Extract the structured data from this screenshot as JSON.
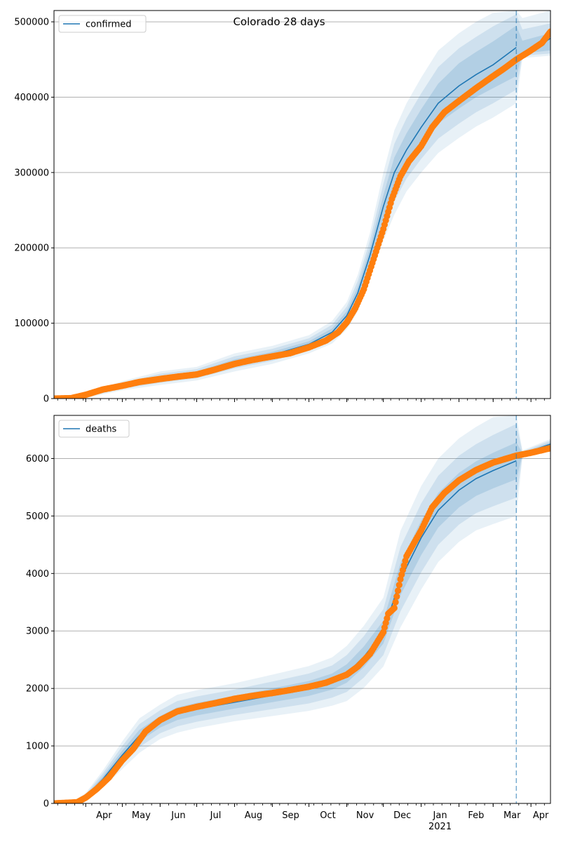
{
  "figure": {
    "title": "Colorado 28 days"
  },
  "colors": {
    "model": "#1f77b4",
    "observed": "#ff7f0e",
    "band": "#1f77b4",
    "grid": "#b0b0b0",
    "forecast_line": "#1f77b4"
  },
  "x_axis": {
    "months": [
      "Apr",
      "May",
      "Jun",
      "Jul",
      "Aug",
      "Sep",
      "Oct",
      "Nov",
      "Dec",
      "Jan",
      "Feb",
      "Mar",
      "Apr"
    ],
    "year_label": "2021",
    "year_label_under": "Jan",
    "range": [
      "2020-03-06",
      "2021-04-17"
    ],
    "forecast_start": "2021-03-20"
  },
  "chart_data": [
    {
      "type": "line",
      "legend": "confirmed",
      "legend_position": "upper left",
      "grid": "y",
      "ylim": [
        0,
        515000
      ],
      "yticks": [
        0,
        100000,
        200000,
        300000,
        400000,
        500000
      ],
      "ytick_labels": [
        "0",
        "100000",
        "200000",
        "300000",
        "400000",
        "500000"
      ],
      "series": [
        {
          "name": "confirmed",
          "kind": "model",
          "x": [
            "2020-03-06",
            "2020-04-01",
            "2020-05-01",
            "2020-06-01",
            "2020-07-01",
            "2020-08-01",
            "2020-09-01",
            "2020-10-01",
            "2020-10-20",
            "2020-11-01",
            "2020-11-10",
            "2020-11-20",
            "2020-12-01",
            "2020-12-10",
            "2020-12-20",
            "2021-01-01",
            "2021-01-15",
            "2021-02-01",
            "2021-02-15",
            "2021-03-01",
            "2021-03-20",
            "2021-03-25",
            "2021-04-17"
          ],
          "values": [
            0,
            4000,
            17000,
            27000,
            33000,
            48000,
            58000,
            72000,
            88000,
            110000,
            140000,
            190000,
            255000,
            300000,
            330000,
            360000,
            392000,
            415000,
            430000,
            443000,
            466000,
            455000,
            478000
          ],
          "bands": [
            {
              "lower": [
                0,
                3000,
                15000,
                24000,
                30000,
                44000,
                54000,
                68000,
                83000,
                104000,
                132000,
                180000,
                240000,
                280000,
                310000,
                337000,
                365000,
                385000,
                400000,
                412000,
                428000,
                458000,
                462000
              ],
              "upper": [
                0,
                5000,
                19000,
                30000,
                36000,
                52000,
                62000,
                76000,
                93000,
                116000,
                148000,
                200000,
                270000,
                320000,
                352000,
                384000,
                418000,
                445000,
                460000,
                474000,
                495000,
                475000,
                485000
              ]
            },
            {
              "lower": [
                0,
                2000,
                13000,
                21000,
                27000,
                40000,
                50000,
                64000,
                78000,
                98000,
                124000,
                170000,
                225000,
                262000,
                292000,
                318000,
                345000,
                365000,
                380000,
                392000,
                410000,
                455000,
                458000
              ],
              "upper": [
                0,
                6000,
                21000,
                33000,
                39000,
                56000,
                66000,
                80000,
                98000,
                122000,
                156000,
                210000,
                285000,
                338000,
                372000,
                405000,
                440000,
                465000,
                480000,
                494000,
                510000,
                490000,
                498000
              ]
            },
            {
              "lower": [
                0,
                1000,
                11000,
                18000,
                24000,
                36000,
                46000,
                60000,
                73000,
                92000,
                116000,
                160000,
                210000,
                244000,
                275000,
                300000,
                326000,
                346000,
                361000,
                373000,
                392000,
                452000,
                455000
              ],
              "upper": [
                0,
                7000,
                23000,
                36000,
                42000,
                60000,
                70000,
                84000,
                103000,
                128000,
                164000,
                220000,
                300000,
                356000,
                392000,
                426000,
                462000,
                485000,
                500000,
                512000,
                515000,
                505000,
                515000
              ]
            }
          ]
        },
        {
          "name": "confirmed (observed)",
          "kind": "observed",
          "x": [
            "2020-03-06",
            "2020-03-20",
            "2020-04-01",
            "2020-04-15",
            "2020-05-01",
            "2020-05-15",
            "2020-06-01",
            "2020-06-15",
            "2020-07-01",
            "2020-07-15",
            "2020-08-01",
            "2020-08-15",
            "2020-09-01",
            "2020-09-15",
            "2020-10-01",
            "2020-10-15",
            "2020-10-25",
            "2020-11-01",
            "2020-11-08",
            "2020-11-15",
            "2020-11-22",
            "2020-12-01",
            "2020-12-08",
            "2020-12-15",
            "2020-12-22",
            "2021-01-01",
            "2021-01-10",
            "2021-01-20",
            "2021-02-01",
            "2021-02-15",
            "2021-03-01",
            "2021-03-10",
            "2021-03-20",
            "2021-03-30",
            "2021-04-10",
            "2021-04-17"
          ],
          "values": [
            0,
            500,
            5000,
            12000,
            17000,
            22000,
            26000,
            29000,
            32000,
            38000,
            46000,
            51000,
            56000,
            60000,
            68000,
            77000,
            88000,
            101000,
            120000,
            145000,
            180000,
            225000,
            265000,
            295000,
            315000,
            335000,
            360000,
            380000,
            395000,
            412000,
            428000,
            438000,
            450000,
            460000,
            472000,
            487000
          ]
        }
      ]
    },
    {
      "type": "line",
      "legend": "deaths",
      "legend_position": "upper left",
      "grid": "y",
      "ylim": [
        0,
        6750
      ],
      "yticks": [
        0,
        1000,
        2000,
        3000,
        4000,
        5000,
        6000
      ],
      "ytick_labels": [
        "0",
        "1000",
        "2000",
        "3000",
        "4000",
        "5000",
        "6000"
      ],
      "series": [
        {
          "name": "deaths",
          "kind": "model",
          "x": [
            "2020-03-06",
            "2020-03-20",
            "2020-04-01",
            "2020-04-15",
            "2020-05-01",
            "2020-05-15",
            "2020-06-01",
            "2020-06-15",
            "2020-07-01",
            "2020-08-01",
            "2020-09-01",
            "2020-10-01",
            "2020-10-20",
            "2020-11-01",
            "2020-11-15",
            "2020-12-01",
            "2020-12-15",
            "2021-01-01",
            "2021-01-15",
            "2021-02-01",
            "2021-02-15",
            "2021-03-01",
            "2021-03-20",
            "2021-03-25",
            "2021-04-17"
          ],
          "values": [
            0,
            10,
            120,
            420,
            840,
            1180,
            1420,
            1560,
            1640,
            1760,
            1880,
            2000,
            2120,
            2260,
            2550,
            2980,
            3900,
            4620,
            5100,
            5450,
            5650,
            5790,
            5960,
            6080,
            6250
          ],
          "bands": [
            {
              "lower": [
                0,
                8,
                100,
                370,
                760,
                1080,
                1320,
                1450,
                1530,
                1650,
                1760,
                1870,
                1980,
                2100,
                2370,
                2780,
                3620,
                4320,
                4800,
                5150,
                5350,
                5480,
                5640,
                6060,
                6220
              ],
              "upper": [
                0,
                12,
                140,
                470,
                920,
                1280,
                1520,
                1670,
                1750,
                1870,
                2000,
                2130,
                2260,
                2420,
                2730,
                3180,
                4180,
                4920,
                5400,
                5750,
                5950,
                6100,
                6280,
                6100,
                6280
              ]
            },
            {
              "lower": [
                0,
                6,
                80,
                320,
                680,
                980,
                1220,
                1340,
                1420,
                1540,
                1640,
                1740,
                1840,
                1940,
                2190,
                2580,
                3340,
                4020,
                4500,
                4850,
                5050,
                5170,
                5320,
                6040,
                6190
              ],
              "upper": [
                0,
                14,
                160,
                520,
                1000,
                1380,
                1620,
                1780,
                1860,
                1980,
                2120,
                2260,
                2400,
                2580,
                2910,
                3380,
                4460,
                5220,
                5700,
                6050,
                6250,
                6410,
                6600,
                6120,
                6310
              ]
            },
            {
              "lower": [
                0,
                4,
                60,
                270,
                600,
                880,
                1120,
                1230,
                1310,
                1430,
                1520,
                1610,
                1700,
                1780,
                2010,
                2380,
                3060,
                3720,
                4200,
                4550,
                4750,
                4860,
                5000,
                6020,
                6160
              ],
              "upper": [
                0,
                16,
                180,
                570,
                1080,
                1480,
                1720,
                1890,
                1970,
                2090,
                2240,
                2390,
                2540,
                2740,
                3090,
                3580,
                4740,
                5520,
                6000,
                6350,
                6550,
                6720,
                6750,
                6140,
                6340
              ]
            }
          ]
        },
        {
          "name": "deaths (observed)",
          "kind": "observed",
          "x": [
            "2020-03-06",
            "2020-03-25",
            "2020-04-01",
            "2020-04-10",
            "2020-04-20",
            "2020-05-01",
            "2020-05-10",
            "2020-05-20",
            "2020-06-01",
            "2020-06-15",
            "2020-07-01",
            "2020-07-15",
            "2020-08-01",
            "2020-08-15",
            "2020-09-01",
            "2020-09-15",
            "2020-10-01",
            "2020-10-15",
            "2020-11-01",
            "2020-11-10",
            "2020-11-20",
            "2020-12-01",
            "2020-12-05",
            "2020-12-10",
            "2020-12-15",
            "2020-12-20",
            "2021-01-01",
            "2021-01-10",
            "2021-01-20",
            "2021-02-01",
            "2021-02-15",
            "2021-03-01",
            "2021-03-20",
            "2021-04-01",
            "2021-04-17"
          ],
          "values": [
            0,
            20,
            100,
            250,
            450,
            750,
            950,
            1250,
            1450,
            1600,
            1680,
            1740,
            1820,
            1870,
            1920,
            1970,
            2030,
            2100,
            2240,
            2380,
            2600,
            2980,
            3300,
            3400,
            3900,
            4300,
            4750,
            5150,
            5400,
            5620,
            5800,
            5930,
            6050,
            6100,
            6180
          ]
        }
      ]
    }
  ]
}
